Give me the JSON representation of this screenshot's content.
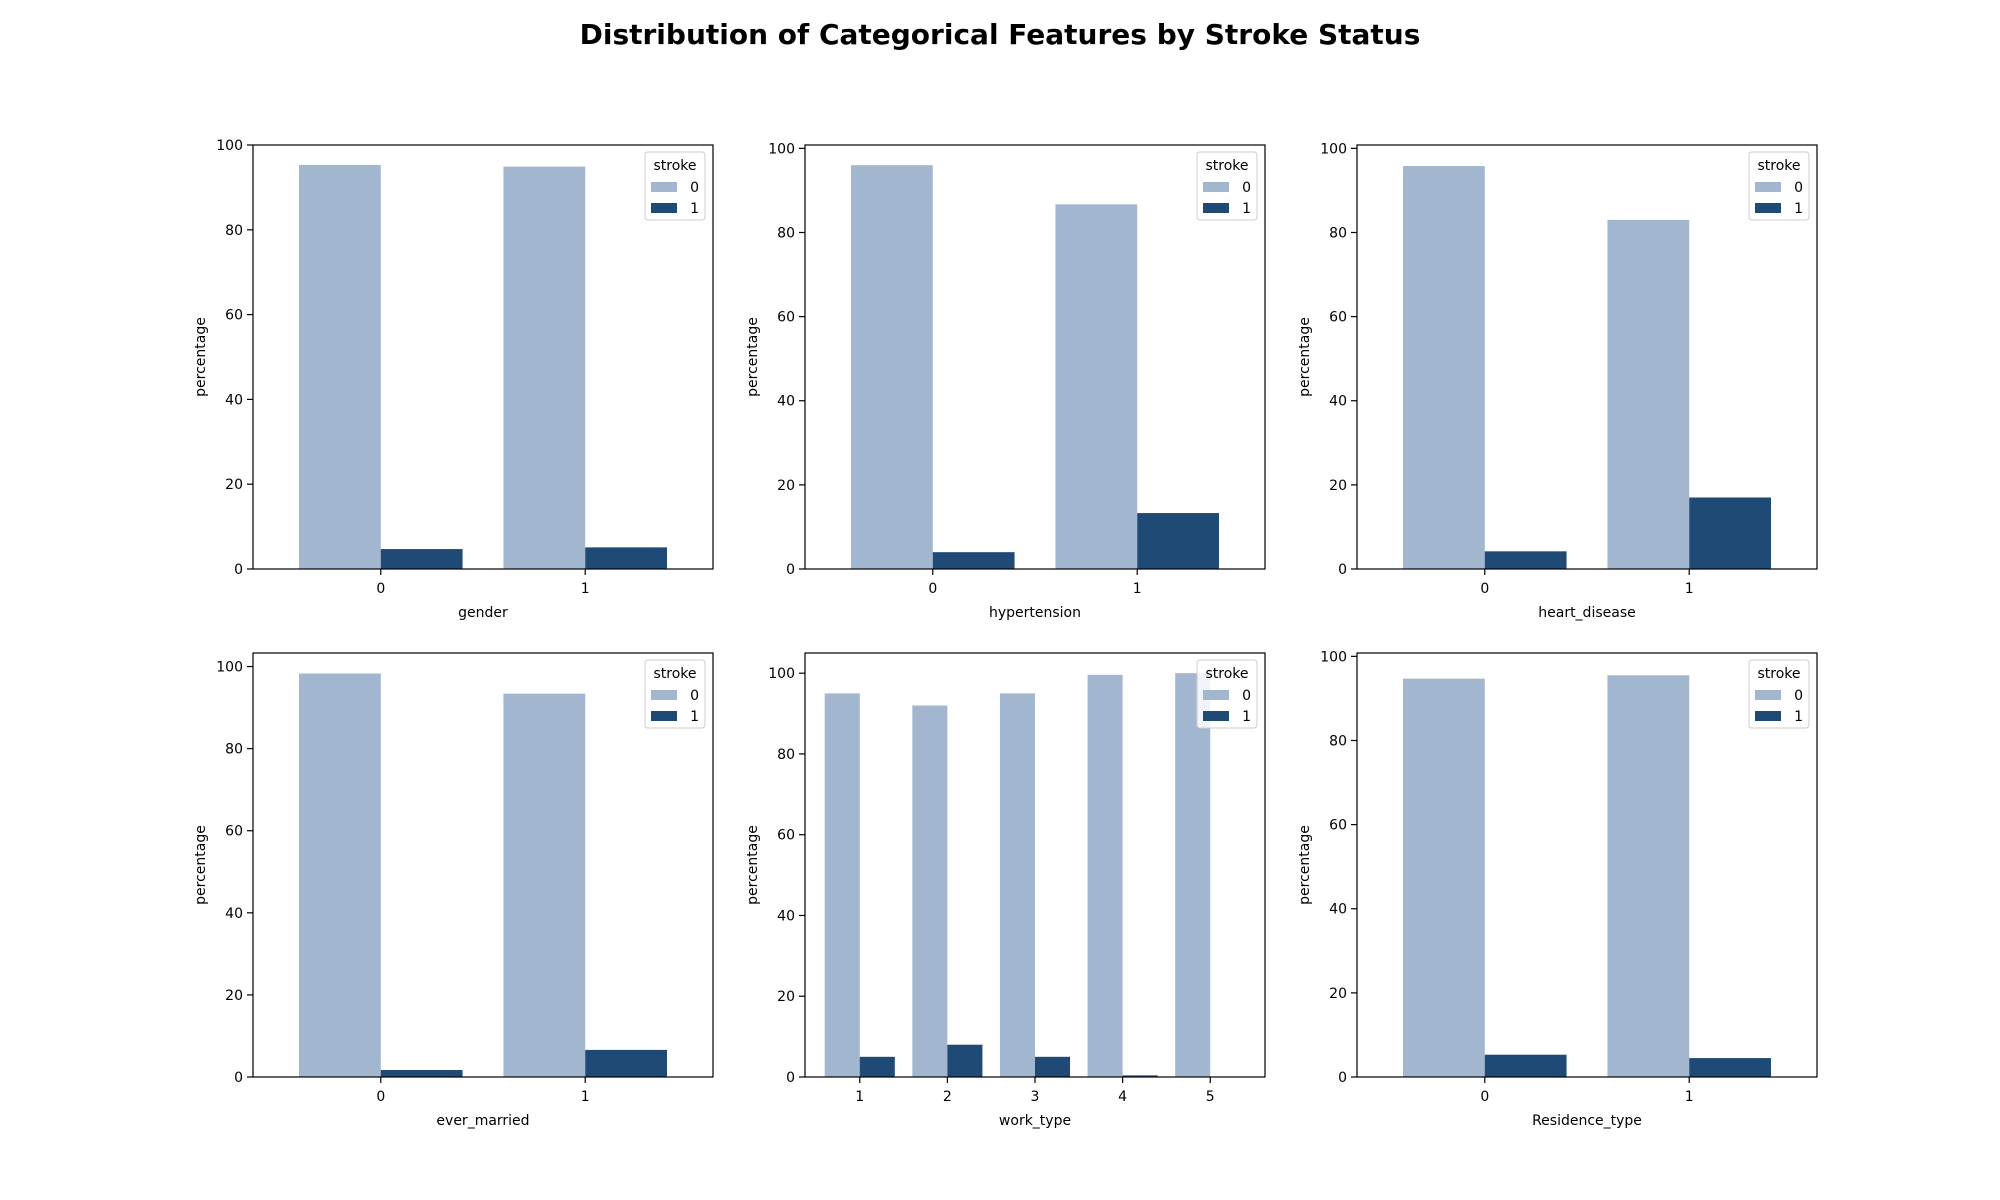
{
  "figure": {
    "title": "Distribution of Categorical Features by Stroke Status"
  },
  "colors": {
    "stroke_0": "#a2b6cf",
    "stroke_1": "#1f4a76"
  },
  "chart_data": [
    {
      "type": "bar",
      "xlabel": "gender",
      "ylabel": "percentage",
      "categories": [
        "0",
        "1"
      ],
      "ylim": [
        0,
        100
      ],
      "yticks": [
        0,
        20,
        40,
        60,
        80,
        100
      ],
      "legend": {
        "title": "stroke",
        "placement": "top-right"
      },
      "series": [
        {
          "name": "0",
          "values": [
            95.3,
            94.9
          ]
        },
        {
          "name": "1",
          "values": [
            4.7,
            5.1
          ]
        }
      ]
    },
    {
      "type": "bar",
      "xlabel": "hypertension",
      "ylabel": "percentage",
      "categories": [
        "0",
        "1"
      ],
      "ylim": [
        0,
        100.8
      ],
      "yticks": [
        0,
        20,
        40,
        60,
        80,
        100
      ],
      "legend": {
        "title": "stroke",
        "placement": "top-right"
      },
      "series": [
        {
          "name": "0",
          "values": [
            96.0,
            86.7
          ]
        },
        {
          "name": "1",
          "values": [
            4.0,
            13.3
          ]
        }
      ]
    },
    {
      "type": "bar",
      "xlabel": "heart_disease",
      "ylabel": "percentage",
      "categories": [
        "0",
        "1"
      ],
      "ylim": [
        0,
        100.8
      ],
      "yticks": [
        0,
        20,
        40,
        60,
        80,
        100
      ],
      "legend": {
        "title": "stroke",
        "placement": "top-right"
      },
      "series": [
        {
          "name": "0",
          "values": [
            95.8,
            83.0
          ]
        },
        {
          "name": "1",
          "values": [
            4.2,
            17.0
          ]
        }
      ]
    },
    {
      "type": "bar",
      "xlabel": "ever_married",
      "ylabel": "percentage",
      "categories": [
        "0",
        "1"
      ],
      "ylim": [
        0,
        103.3
      ],
      "yticks": [
        0,
        20,
        40,
        60,
        80,
        100
      ],
      "legend": {
        "title": "stroke",
        "placement": "top-right"
      },
      "series": [
        {
          "name": "0",
          "values": [
            98.3,
            93.4
          ]
        },
        {
          "name": "1",
          "values": [
            1.7,
            6.6
          ]
        }
      ]
    },
    {
      "type": "bar",
      "xlabel": "work_type",
      "ylabel": "percentage",
      "categories": [
        "1",
        "2",
        "3",
        "4",
        "5"
      ],
      "ylim": [
        0,
        105
      ],
      "yticks": [
        0,
        20,
        40,
        60,
        80,
        100
      ],
      "legend": {
        "title": "stroke",
        "placement": "top-right"
      },
      "series": [
        {
          "name": "0",
          "values": [
            95.0,
            92.0,
            95.0,
            99.6,
            100.0
          ]
        },
        {
          "name": "1",
          "values": [
            5.0,
            8.0,
            5.0,
            0.4,
            0.0
          ]
        }
      ]
    },
    {
      "type": "bar",
      "xlabel": "Residence_type",
      "ylabel": "percentage",
      "categories": [
        "0",
        "1"
      ],
      "ylim": [
        0,
        100.8
      ],
      "yticks": [
        0,
        20,
        40,
        60,
        80,
        100
      ],
      "legend": {
        "title": "stroke",
        "placement": "top-right"
      },
      "series": [
        {
          "name": "0",
          "values": [
            94.7,
            95.5
          ]
        },
        {
          "name": "1",
          "values": [
            5.3,
            4.5
          ]
        }
      ]
    }
  ]
}
